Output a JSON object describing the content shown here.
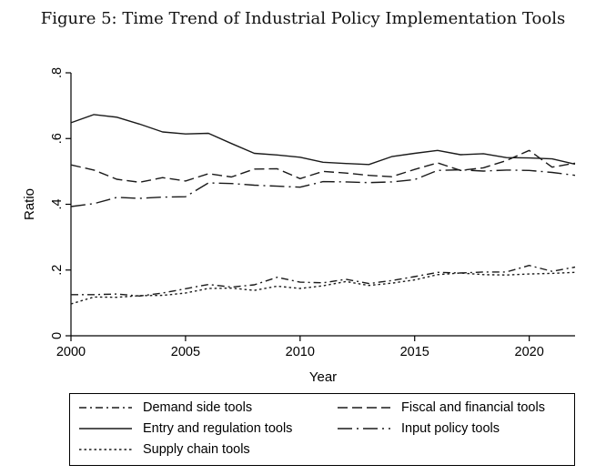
{
  "figure_title": "Figure 5: Time Trend of Industrial Policy Implementation Tools",
  "chart_data": {
    "type": "line",
    "title": "Figure 5: Time Trend of Industrial Policy Implementation Tools",
    "xlabel": "Year",
    "ylabel": "Ratio",
    "xlim": [
      2000,
      2022
    ],
    "ylim": [
      0,
      0.8
    ],
    "x_ticks": [
      2000,
      2005,
      2010,
      2015,
      2020
    ],
    "x_tick_labels": [
      "2000",
      "2005",
      "2010",
      "2015",
      "2020"
    ],
    "y_ticks": [
      0,
      0.2,
      0.4,
      0.6,
      0.8
    ],
    "y_tick_labels": [
      "0",
      ".2",
      ".4",
      ".6",
      ".8"
    ],
    "grid": false,
    "legend_position": "bottom",
    "x": [
      2000,
      2001,
      2002,
      2003,
      2004,
      2005,
      2006,
      2007,
      2008,
      2009,
      2010,
      2011,
      2012,
      2013,
      2014,
      2015,
      2016,
      2017,
      2018,
      2019,
      2020,
      2021,
      2022
    ],
    "series": [
      {
        "name": "Demand side tools",
        "dash": "dash-dot",
        "color": "#1a1a1a",
        "values": [
          0.125,
          0.125,
          0.127,
          0.121,
          0.13,
          0.143,
          0.156,
          0.148,
          0.155,
          0.178,
          0.163,
          0.161,
          0.172,
          0.159,
          0.168,
          0.18,
          0.193,
          0.191,
          0.194,
          0.194,
          0.214,
          0.196,
          0.209
        ]
      },
      {
        "name": "Fiscal and financial tools",
        "dash": "dash",
        "color": "#1a1a1a",
        "values": [
          0.52,
          0.504,
          0.476,
          0.467,
          0.481,
          0.471,
          0.493,
          0.483,
          0.507,
          0.508,
          0.478,
          0.5,
          0.495,
          0.488,
          0.484,
          0.506,
          0.526,
          0.503,
          0.511,
          0.533,
          0.564,
          0.513,
          0.525
        ]
      },
      {
        "name": "Entry and regulation tools",
        "dash": "solid",
        "color": "#1a1a1a",
        "values": [
          0.648,
          0.673,
          0.665,
          0.644,
          0.62,
          0.614,
          0.616,
          0.585,
          0.555,
          0.55,
          0.543,
          0.528,
          0.524,
          0.521,
          0.545,
          0.555,
          0.564,
          0.551,
          0.554,
          0.542,
          0.541,
          0.538,
          0.522
        ]
      },
      {
        "name": "Input policy tools",
        "dash": "long-dash-dot",
        "color": "#1a1a1a",
        "values": [
          0.393,
          0.402,
          0.421,
          0.418,
          0.422,
          0.423,
          0.465,
          0.463,
          0.458,
          0.455,
          0.452,
          0.469,
          0.468,
          0.466,
          0.468,
          0.475,
          0.503,
          0.505,
          0.501,
          0.504,
          0.503,
          0.497,
          0.488
        ]
      },
      {
        "name": "Supply chain tools",
        "dash": "dot",
        "color": "#1a1a1a",
        "values": [
          0.097,
          0.118,
          0.117,
          0.122,
          0.123,
          0.13,
          0.144,
          0.145,
          0.138,
          0.151,
          0.144,
          0.152,
          0.165,
          0.153,
          0.16,
          0.17,
          0.186,
          0.191,
          0.186,
          0.185,
          0.188,
          0.19,
          0.193
        ]
      }
    ]
  }
}
